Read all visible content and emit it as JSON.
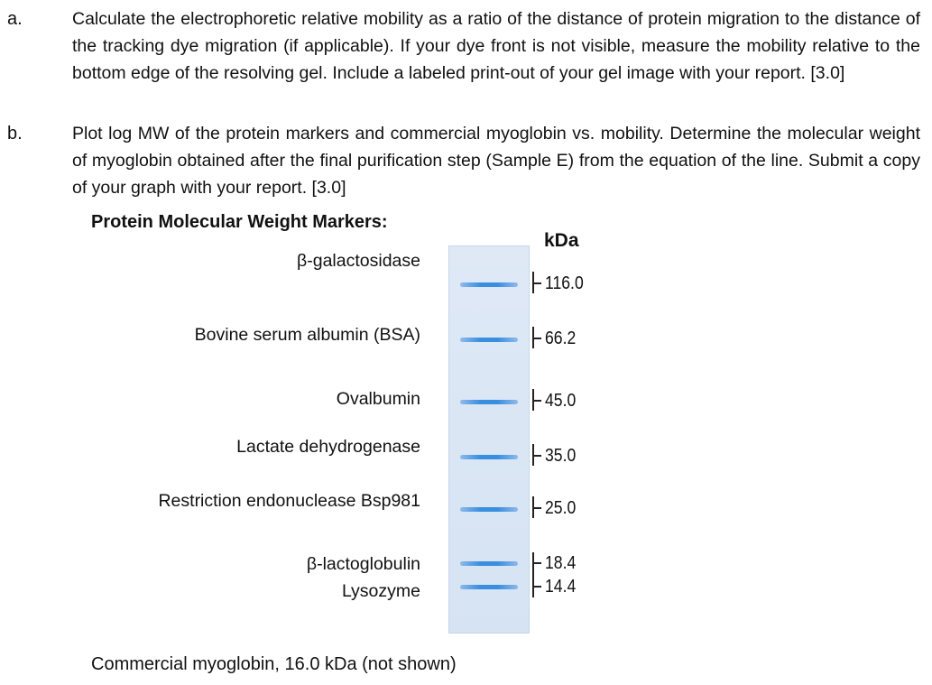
{
  "items": [
    {
      "marker": "a.",
      "text": "Calculate the electrophoretic relative mobility as a ratio of the distance of protein migration to the distance of the tracking dye migration (if applicable). If your dye front is not visible, measure the mobility relative to the bottom edge of the resolving gel. Include a labeled print-out of your gel image with your report. [3.0]"
    },
    {
      "marker": "b.",
      "text": "Plot log MW of the protein markers and commercial myoglobin vs. mobility. Determine the molecular weight of myoglobin obtained after the final purification step (Sample E) from the equation of the line. Submit a copy of your graph with your report. [3.0]"
    }
  ],
  "markers_heading": "Protein Molecular Weight Markers:",
  "unit_label": "kDa",
  "markers": [
    {
      "name": "β-galactosidase",
      "mw": "116.0"
    },
    {
      "name": "Bovine serum albumin (BSA)",
      "mw": "66.2"
    },
    {
      "name": "Ovalbumin",
      "mw": "45.0"
    },
    {
      "name": "Lactate dehydrogenase",
      "mw": "35.0"
    },
    {
      "name": "Restriction endonuclease Bsp981",
      "mw": "25.0"
    },
    {
      "name": "β-lactoglobulin",
      "mw": "18.4"
    },
    {
      "name": "Lysozyme",
      "mw": "14.4"
    }
  ],
  "footnote": "Commercial myoglobin, 16.0 kDa (not shown)",
  "colors": {
    "gel_background": "#d9e6f5",
    "band": "#3a8ee0"
  }
}
